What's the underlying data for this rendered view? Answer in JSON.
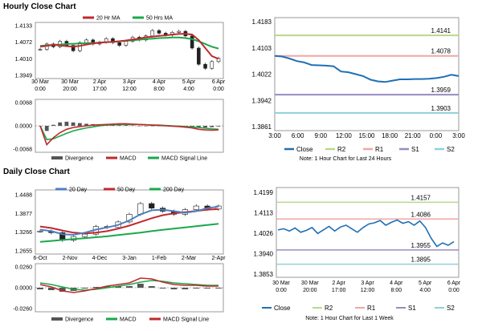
{
  "sections": {
    "hourly_title": "Hourly Close Chart",
    "daily_title": "Daily Close Chart"
  },
  "colors": {
    "price": "#1a1a1a",
    "ma_short": "#c0282d",
    "ma_long": "#1aa84a",
    "ma_200": "#1aa84a",
    "ma_20d": "#4f7fbf",
    "close": "#1f6fb4",
    "r2": "#b9d98a",
    "r1": "#f2a6a6",
    "s1": "#9a89c1",
    "s2": "#8fd1d8",
    "hist": "#555555",
    "macd": "#c0282d",
    "signal": "#1aa84a"
  },
  "chart_data": [
    {
      "id": "hourly-price",
      "type": "line",
      "legend": [
        "20 Hr MA",
        "50 Hrs MA"
      ],
      "yticks": [
        "1.4133",
        "1.4072",
        "1.4010",
        "1.3949"
      ],
      "ylim": [
        1.3949,
        1.4133
      ],
      "xticks": [
        "30 Mar\n0:00",
        "30 Mar\n20:00",
        "2 Apr\n17:00",
        "3 Apr\n12:00",
        "4 Apr\n8:00",
        "5 Apr\n4:00",
        "6 Apr\n0:00"
      ],
      "series": [
        {
          "name": "20 Hr MA",
          "values": [
            1.4055,
            1.4058,
            1.4062,
            1.406,
            1.4057,
            1.4055,
            1.4058,
            1.4063,
            1.4067,
            1.407,
            1.4072,
            1.4073,
            1.4075,
            1.4078,
            1.4082,
            1.4085,
            1.409,
            1.4092,
            1.4095,
            1.4097,
            1.41,
            1.4102,
            1.4103,
            1.41,
            1.408,
            1.405,
            1.402,
            1.401
          ]
        },
        {
          "name": "50 Hrs MA",
          "values": [
            1.4058,
            1.406,
            1.4062,
            1.4063,
            1.4065,
            1.4066,
            1.4067,
            1.4068,
            1.4069,
            1.407,
            1.4072,
            1.4073,
            1.4075,
            1.4077,
            1.4079,
            1.4081,
            1.4083,
            1.4085,
            1.4087,
            1.4088,
            1.4089,
            1.4089,
            1.4087,
            1.4083,
            1.4075,
            1.4065,
            1.4055,
            1.4048
          ]
        }
      ],
      "candles": [
        1.4045,
        1.4065,
        1.4055,
        1.4075,
        1.406,
        1.404,
        1.407,
        1.408,
        1.4065,
        1.4072,
        1.4085,
        1.407,
        1.406,
        1.4075,
        1.409,
        1.408,
        1.4095,
        1.4115,
        1.4105,
        1.4098,
        1.4108,
        1.4112,
        1.4095,
        1.405,
        1.399,
        1.3975,
        1.4,
        1.4012
      ]
    },
    {
      "id": "hourly-macd",
      "type": "line",
      "yticks": [
        "0.0068",
        "0.0000",
        "-0.0068"
      ],
      "ylim": [
        -0.0068,
        0.0068
      ],
      "legend": [
        "Divergence",
        "MACD",
        "MACD Signal Line"
      ],
      "series": [
        {
          "name": "MACD",
          "values": [
            0.0,
            -0.0055,
            -0.0035,
            -0.002,
            -0.001,
            -0.0005,
            -0.0002,
            0.0,
            0.0002,
            0.0003,
            0.0004,
            0.0005,
            0.0006,
            0.0006,
            0.0005,
            0.0004,
            0.0003,
            0.0002,
            0.0001,
            0.0,
            -0.0001,
            -0.0002,
            -0.0004,
            -0.0006,
            -0.001,
            -0.0012,
            -0.0013,
            -0.0012
          ]
        },
        {
          "name": "MACD Signal Line",
          "values": [
            0.0,
            -0.004,
            -0.0038,
            -0.003,
            -0.0022,
            -0.0015,
            -0.001,
            -0.0006,
            -0.0003,
            0.0,
            0.0002,
            0.0003,
            0.0004,
            0.0004,
            0.0004,
            0.0004,
            0.0003,
            0.0002,
            0.0002,
            0.0001,
            0.0,
            -0.0001,
            -0.0002,
            -0.0003,
            -0.0005,
            -0.0007,
            -0.0009,
            -0.001
          ]
        }
      ],
      "divergence": [
        0.0,
        -0.0015,
        0.0003,
        0.001,
        0.0012,
        0.001,
        0.0008,
        0.0006,
        0.0005,
        0.0003,
        0.0002,
        0.0002,
        0.0002,
        0.0002,
        0.0001,
        0.0,
        0.0,
        0.0,
        -0.0001,
        -0.0001,
        -0.0001,
        -0.0001,
        -0.0002,
        -0.0003,
        -0.0005,
        -0.0005,
        -0.0004,
        -0.0002
      ]
    },
    {
      "id": "hourly-levels",
      "type": "line",
      "yticks": [
        "1.4183",
        "1.4103",
        "1.4022",
        "1.3942",
        "1.3861"
      ],
      "ylim": [
        1.3861,
        1.4183
      ],
      "xticks": [
        "3:00",
        "6:00",
        "9:00",
        "12:00",
        "15:00",
        "18:00",
        "21:00",
        "0:00",
        "3:00"
      ],
      "levels": [
        {
          "name": "R2",
          "value": 1.4141,
          "label": "1.4141"
        },
        {
          "name": "R1",
          "value": 1.4078,
          "label": "1.4078"
        },
        {
          "name": "S1",
          "value": 1.3959,
          "label": "1.3959"
        },
        {
          "name": "S2",
          "value": 1.3903,
          "label": "1.3903"
        }
      ],
      "close_values": [
        1.4078,
        1.4076,
        1.407,
        1.4062,
        1.4058,
        1.405,
        1.4049,
        1.4048,
        1.4046,
        1.403,
        1.4028,
        1.4022,
        1.4016,
        1.4005,
        1.4,
        1.3998,
        1.4002,
        1.4006,
        1.4006,
        1.4007,
        1.4007,
        1.4008,
        1.401,
        1.4014,
        1.402,
        1.4016
      ],
      "legend": [
        "Close",
        "R2",
        "R1",
        "S1",
        "S2"
      ],
      "note": "Note: 1 Hour Chart for Last 24 Hours"
    },
    {
      "id": "daily-price",
      "type": "line",
      "legend": [
        "20 Day",
        "50 Day",
        "200 Day"
      ],
      "yticks": [
        "1.4488",
        "1.3877",
        "1.3266",
        "1.2655"
      ],
      "ylim": [
        1.2655,
        1.4488
      ],
      "xticks": [
        "6-Oct",
        "2-Nov",
        "4-Dec",
        "3-Jan",
        "1-Feb",
        "2-Mar",
        "2-Apr"
      ],
      "series": [
        {
          "name": "20 Day",
          "values": [
            1.335,
            1.33,
            1.32,
            1.318,
            1.325,
            1.335,
            1.342,
            1.35,
            1.365,
            1.385,
            1.398,
            1.4,
            1.395,
            1.39,
            1.395,
            1.405,
            1.41
          ]
        },
        {
          "name": "50 Day",
          "values": [
            1.345,
            1.34,
            1.332,
            1.325,
            1.322,
            1.325,
            1.33,
            1.338,
            1.348,
            1.36,
            1.372,
            1.382,
            1.388,
            1.392,
            1.396,
            1.4,
            1.402
          ]
        },
        {
          "name": "200 Day",
          "values": [
            1.295,
            1.298,
            1.301,
            1.304,
            1.307,
            1.31,
            1.313,
            1.317,
            1.321,
            1.325,
            1.33,
            1.334,
            1.338,
            1.342,
            1.346,
            1.35,
            1.354
          ]
        }
      ],
      "candles": [
        1.33,
        1.325,
        1.3,
        1.312,
        1.32,
        1.345,
        1.342,
        1.36,
        1.385,
        1.42,
        1.405,
        1.395,
        1.385,
        1.4,
        1.412,
        1.402,
        1.412
      ]
    },
    {
      "id": "daily-macd",
      "type": "line",
      "yticks": [
        "0.0260",
        "0.0000",
        "-0.0260"
      ],
      "ylim": [
        -0.026,
        0.026
      ],
      "legend": [
        "Divergence",
        "MACD",
        "MACD Signal Line"
      ],
      "series": [
        {
          "name": "MACD",
          "values": [
            0.004,
            0.001,
            -0.004,
            -0.006,
            -0.004,
            -0.001,
            0.002,
            0.004,
            0.006,
            0.012,
            0.011,
            0.007,
            0.004,
            0.003,
            0.003,
            0.002,
            0.002
          ]
        },
        {
          "name": "MACD Signal Line",
          "values": [
            0.006,
            0.004,
            0.001,
            -0.002,
            -0.003,
            -0.002,
            0.0,
            0.002,
            0.004,
            0.007,
            0.009,
            0.008,
            0.006,
            0.005,
            0.004,
            0.003,
            0.003
          ]
        }
      ],
      "divergence": [
        -0.002,
        -0.003,
        -0.005,
        -0.004,
        -0.001,
        0.001,
        0.002,
        0.002,
        0.002,
        0.005,
        0.002,
        -0.001,
        -0.002,
        -0.002,
        -0.001,
        -0.001,
        -0.001
      ]
    },
    {
      "id": "daily-levels",
      "type": "line",
      "yticks": [
        "1.4199",
        "1.4113",
        "1.4026",
        "1.3940",
        "1.3853"
      ],
      "ylim": [
        1.3853,
        1.4199
      ],
      "xticks": [
        "30 Mar\n0:00",
        "30 Mar\n20:00",
        "2 Apr\n17:00",
        "3 Apr\n12:00",
        "4 Apr\n8:00",
        "5 Apr\n4:00",
        "6 Apr\n0:00"
      ],
      "levels": [
        {
          "name": "R2",
          "value": 1.4157,
          "label": "1.4157"
        },
        {
          "name": "R1",
          "value": 1.4086,
          "label": "1.4086"
        },
        {
          "name": "S1",
          "value": 1.3955,
          "label": "1.3955"
        },
        {
          "name": "S2",
          "value": 1.3895,
          "label": "1.3895"
        }
      ],
      "close_values": [
        1.404,
        1.4045,
        1.4035,
        1.4048,
        1.403,
        1.4038,
        1.405,
        1.4025,
        1.404,
        1.4055,
        1.4035,
        1.4052,
        1.406,
        1.4045,
        1.403,
        1.405,
        1.4065,
        1.407,
        1.408,
        1.406,
        1.4072,
        1.4082,
        1.4068,
        1.4075,
        1.406,
        1.4078,
        1.405,
        1.4005,
        1.397,
        1.3985,
        1.3975,
        1.399
      ],
      "legend": [
        "Close",
        "R2",
        "R1",
        "S1",
        "S2"
      ],
      "note": "Note: 1 Hour Chart for Last 1 Week"
    }
  ]
}
